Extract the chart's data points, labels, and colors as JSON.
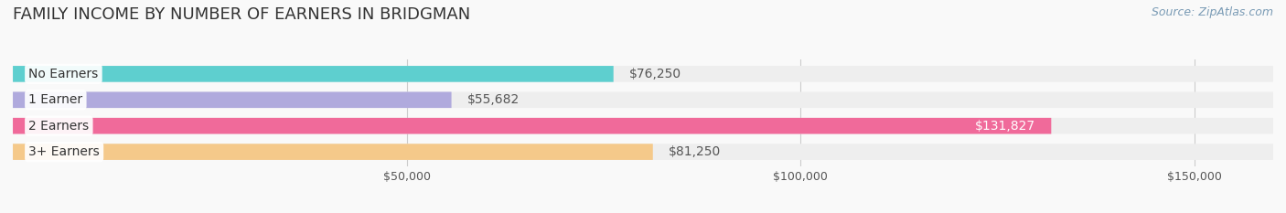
{
  "title": "FAMILY INCOME BY NUMBER OF EARNERS IN BRIDGMAN",
  "source": "Source: ZipAtlas.com",
  "categories": [
    "No Earners",
    "1 Earner",
    "2 Earners",
    "3+ Earners"
  ],
  "values": [
    76250,
    55682,
    131827,
    81250
  ],
  "bar_colors": [
    "#5ECFCF",
    "#B0AADD",
    "#F06A9A",
    "#F5C98A"
  ],
  "bar_bg_color": "#EEEEEE",
  "bg_color": "#F9F9F9",
  "label_bg_color": "#FFFFFF",
  "value_label_colors": [
    "#555555",
    "#555555",
    "#FFFFFF",
    "#555555"
  ],
  "xlim": [
    0,
    160000
  ],
  "tick_values": [
    50000,
    100000,
    150000
  ],
  "tick_labels": [
    "$50,000",
    "$100,000",
    "$150,000"
  ],
  "title_fontsize": 13,
  "source_fontsize": 9,
  "bar_label_fontsize": 10,
  "value_fontsize": 10
}
